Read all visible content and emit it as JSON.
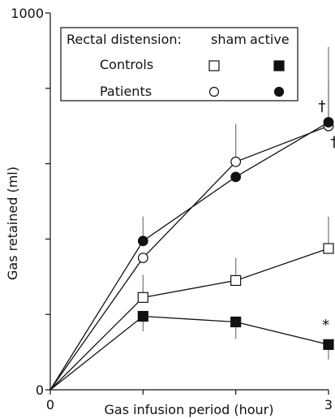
{
  "chart_data": {
    "type": "line",
    "xlabel": "Gas infusion period (hour)",
    "ylabel": "Gas retained (ml)",
    "xlim": [
      0,
      3
    ],
    "ylim": [
      0,
      1000
    ],
    "x_ticks": [
      0,
      1,
      2,
      3
    ],
    "x_tick_labels": [
      "0",
      "",
      "",
      "3"
    ],
    "y_ticks": [
      0,
      200,
      400,
      600,
      800,
      1000
    ],
    "y_tick_labels": [
      "0",
      "",
      "",
      "",
      "",
      "1000"
    ],
    "grid": false,
    "legend": {
      "position": "top-left",
      "header": "Rectal distension:",
      "col_sham": "sham",
      "col_active": "active",
      "row_controls": "Controls",
      "row_patients": "Patients"
    },
    "x": [
      0,
      1,
      2,
      3
    ],
    "series": [
      {
        "name": "Controls sham",
        "group": "Controls",
        "condition": "sham",
        "marker": "square",
        "filled": false,
        "values": [
          0,
          245,
          290,
          375
        ],
        "error_up": [
          0,
          60,
          60,
          85
        ]
      },
      {
        "name": "Controls active",
        "group": "Controls",
        "condition": "active",
        "marker": "square",
        "filled": true,
        "values": [
          0,
          195,
          180,
          120
        ],
        "error_up": [
          0,
          0,
          0,
          0
        ],
        "error_down": [
          0,
          40,
          45,
          40
        ]
      },
      {
        "name": "Patients sham",
        "group": "Patients",
        "condition": "sham",
        "marker": "circle",
        "filled": false,
        "values": [
          0,
          350,
          605,
          700
        ],
        "error_up": [
          0,
          0,
          100,
          120
        ]
      },
      {
        "name": "Patients active",
        "group": "Patients",
        "condition": "active",
        "marker": "circle",
        "filled": true,
        "values": [
          0,
          395,
          565,
          710
        ],
        "error_up": [
          0,
          65,
          0,
          200
        ]
      }
    ],
    "annotations": [
      {
        "text": "†",
        "x": 2.93,
        "y": 740
      },
      {
        "text": "†",
        "x": 3.06,
        "y": 645
      },
      {
        "text": "*",
        "x": 2.97,
        "y": 160
      }
    ]
  }
}
